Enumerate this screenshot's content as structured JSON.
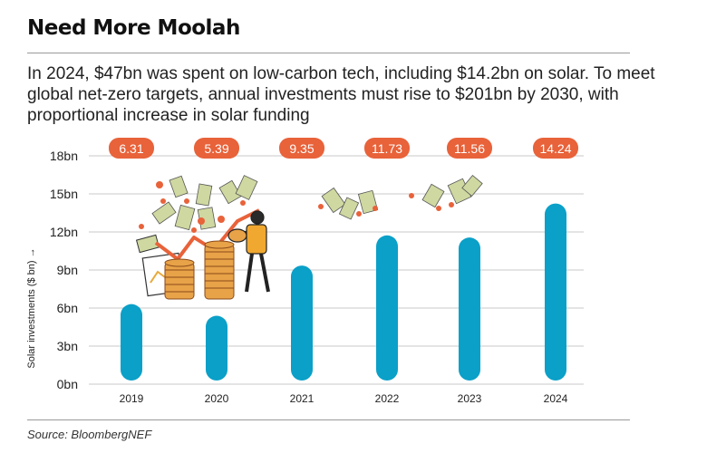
{
  "header": {
    "title": "Need More Moolah",
    "subtitle": "In 2024, $47bn was spent on low-carbon tech, including $14.2bn on solar. To meet global net-zero targets, annual investments must rise to $201bn by 2030, with proportional increase in solar funding"
  },
  "footer": {
    "source": "Source: BloombergNEF"
  },
  "colors": {
    "bar": "#0aa0c8",
    "badge": "#e8623a",
    "grid": "#c9c9c9"
  },
  "chart_data": {
    "type": "bar",
    "categories": [
      "2019",
      "2020",
      "2021",
      "2022",
      "2023",
      "2024"
    ],
    "values": [
      6.31,
      5.39,
      9.35,
      11.73,
      11.56,
      14.24
    ],
    "value_labels": [
      "6.31",
      "5.39",
      "9.35",
      "11.73",
      "11.56",
      "14.24"
    ],
    "ylabel": "Solar investments ($ bn) →",
    "ylim": [
      0,
      18
    ],
    "yticks": [
      0,
      3,
      6,
      9,
      12,
      15,
      18
    ],
    "ytick_labels": [
      "0bn",
      "3bn",
      "6bn",
      "9bn",
      "12bn",
      "15bn",
      "18bn"
    ],
    "grid": true
  }
}
